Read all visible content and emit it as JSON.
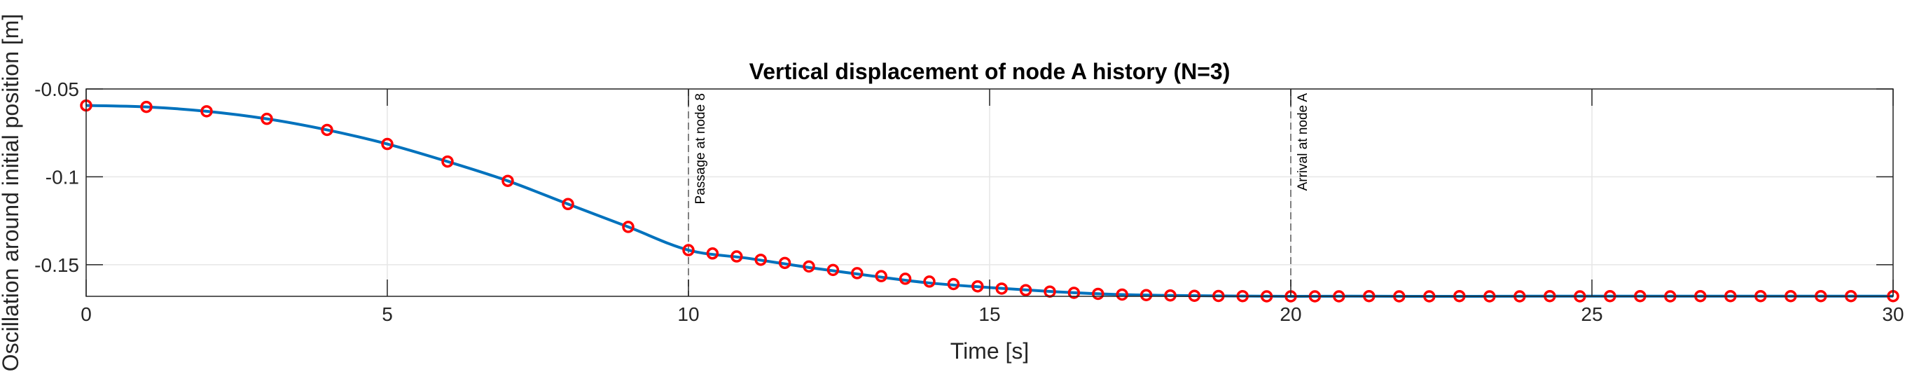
{
  "chart_data": {
    "type": "line",
    "title": "Vertical displacement of node A history (N=3)",
    "xlabel": "Time [s]",
    "ylabel": "Oscillation around initial position [m]",
    "xlim": [
      0,
      30
    ],
    "ylim": [
      -0.168,
      -0.05
    ],
    "xticks": [
      0,
      5,
      10,
      15,
      20,
      25,
      30
    ],
    "yticks": [
      -0.15,
      -0.1,
      -0.05
    ],
    "xtick_labels": [
      "0",
      "5",
      "10",
      "15",
      "20",
      "25",
      "30"
    ],
    "ytick_labels": [
      "-0.15",
      "-0.1",
      "-0.05"
    ],
    "grid": true,
    "colors": {
      "line": "#0072BD",
      "markers": "#FF0000",
      "annotation_line": "#808080"
    },
    "series": [
      {
        "style": "line",
        "x": [
          0,
          1,
          2,
          3,
          4,
          5,
          6,
          7,
          8,
          9,
          10,
          11,
          12,
          13,
          14,
          15,
          16,
          17,
          18,
          19,
          20,
          21,
          22,
          23,
          24,
          25,
          26,
          27,
          28,
          29,
          30
        ],
        "y": [
          -0.0594,
          -0.0602,
          -0.0627,
          -0.067,
          -0.0733,
          -0.0813,
          -0.0913,
          -0.1023,
          -0.1155,
          -0.1285,
          -0.1417,
          -0.1464,
          -0.1516,
          -0.1562,
          -0.1604,
          -0.163,
          -0.1652,
          -0.1668,
          -0.1675,
          -0.1678,
          -0.168,
          -0.1679,
          -0.168,
          -0.168,
          -0.1679,
          -0.1679,
          -0.1679,
          -0.1679,
          -0.1679,
          -0.1679,
          -0.1679
        ]
      },
      {
        "style": "markers",
        "x": [
          0,
          1,
          2,
          3,
          4,
          5,
          6,
          7,
          8,
          9,
          10,
          10.4,
          10.8,
          11.2,
          11.6,
          12.0,
          12.4,
          12.8,
          13.2,
          13.6,
          14.0,
          14.4,
          14.8,
          15.2,
          15.6,
          16.0,
          16.4,
          16.8,
          17.2,
          17.6,
          18.0,
          18.4,
          18.8,
          19.2,
          19.6,
          20.0,
          20.4,
          20.8,
          21.3,
          21.8,
          22.3,
          22.8,
          23.3,
          23.8,
          24.3,
          24.8,
          25.3,
          25.8,
          26.3,
          26.8,
          27.3,
          27.8,
          28.3,
          28.8,
          29.3,
          30.0
        ],
        "y": [
          -0.0594,
          -0.0602,
          -0.0627,
          -0.067,
          -0.0733,
          -0.0813,
          -0.0913,
          -0.1023,
          -0.1155,
          -0.1285,
          -0.1417,
          -0.1436,
          -0.1453,
          -0.1472,
          -0.149,
          -0.151,
          -0.153,
          -0.1548,
          -0.1565,
          -0.158,
          -0.1596,
          -0.161,
          -0.1623,
          -0.1636,
          -0.1645,
          -0.1653,
          -0.166,
          -0.1666,
          -0.167,
          -0.1673,
          -0.1675,
          -0.1677,
          -0.1678,
          -0.1679,
          -0.168,
          -0.168,
          -0.168,
          -0.168,
          -0.1679,
          -0.168,
          -0.168,
          -0.1679,
          -0.168,
          -0.168,
          -0.1679,
          -0.168,
          -0.1679,
          -0.1679,
          -0.168,
          -0.1679,
          -0.1679,
          -0.1679,
          -0.1679,
          -0.1679,
          -0.1679,
          -0.1679
        ]
      }
    ],
    "annotations": [
      {
        "x": 10,
        "text": "Passage at node 8"
      },
      {
        "x": 20,
        "text": "Arrival at node A"
      }
    ]
  }
}
